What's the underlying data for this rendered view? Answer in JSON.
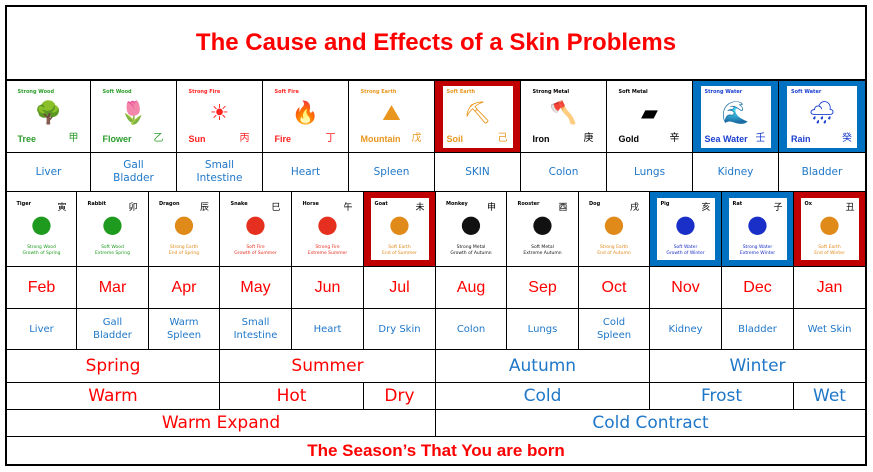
{
  "title": "The Cause and Effects of a Skin Problems",
  "colors": {
    "red": "#ff0000",
    "dark_red": "#c00000",
    "blue": "#0070c0",
    "organ_blue": "#1f77c8"
  },
  "elements": [
    {
      "strength": "Strong Wood",
      "name": "Tree",
      "char": "甲",
      "icon": "tree-icon",
      "glyph": "🌳",
      "color": "#2a9d2a",
      "bg": "white",
      "organ": "Liver"
    },
    {
      "strength": "Soft Wood",
      "name": "Flower",
      "char": "乙",
      "icon": "flower-icon",
      "glyph": "🌷",
      "color": "#2a9d2a",
      "bg": "white",
      "organ": "Gall Bladder"
    },
    {
      "strength": "Strong Fire",
      "name": "Sun",
      "char": "丙",
      "icon": "sun-icon",
      "glyph": "☀",
      "color": "#ff2020",
      "bg": "white",
      "organ": "Small Intestine"
    },
    {
      "strength": "Soft Fire",
      "name": "Fire",
      "char": "丁",
      "icon": "fire-icon",
      "glyph": "🔥",
      "color": "#ff2020",
      "bg": "white",
      "organ": "Heart"
    },
    {
      "strength": "Strong Earth",
      "name": "Mountain",
      "char": "戊",
      "icon": "mountain-icon",
      "glyph": "⛰",
      "color": "#e8961e",
      "bg": "white",
      "organ": "Spleen"
    },
    {
      "strength": "Soft Earth",
      "name": "Soil",
      "char": "己",
      "icon": "soil-icon",
      "glyph": "⛏",
      "color": "#e8961e",
      "bg": "red",
      "organ": "SKIN"
    },
    {
      "strength": "Strong Metal",
      "name": "Iron",
      "char": "庚",
      "icon": "axe-icon",
      "glyph": "🪓",
      "color": "#000000",
      "bg": "white",
      "organ": "Colon"
    },
    {
      "strength": "Soft Metal",
      "name": "Gold",
      "char": "辛",
      "icon": "gold-bar-icon",
      "glyph": "▰",
      "color": "#000000",
      "bg": "white",
      "organ": "Lungs"
    },
    {
      "strength": "Strong Water",
      "name": "Sea Water",
      "char": "壬",
      "icon": "wave-icon",
      "glyph": "🌊",
      "color": "#1a3fd0",
      "bg": "blue",
      "organ": "Kidney"
    },
    {
      "strength": "Soft Water",
      "name": "Rain",
      "char": "癸",
      "icon": "rain-cloud-icon",
      "glyph": "🌧",
      "color": "#1a3fd0",
      "bg": "blue",
      "organ": "Bladder"
    }
  ],
  "zodiac": [
    {
      "animal": "Tiger",
      "char": "寅",
      "desc1": "Strong Wood",
      "desc2": "Growth of Spring",
      "color": "#1e9a1e",
      "bg": "white",
      "month": "Feb",
      "organ": "Liver",
      "icon": "tiger-icon"
    },
    {
      "animal": "Rabbit",
      "char": "卯",
      "desc1": "Soft Wood",
      "desc2": "Extreme Spring",
      "color": "#1e9a1e",
      "bg": "white",
      "month": "Mar",
      "organ": "Gall Bladder",
      "icon": "rabbit-icon"
    },
    {
      "animal": "Dragon",
      "char": "辰",
      "desc1": "Strong Earth",
      "desc2": "End of Spring",
      "color": "#e08a1a",
      "bg": "white",
      "month": "Apr",
      "organ": "Warm Spleen",
      "icon": "dragon-icon"
    },
    {
      "animal": "Snake",
      "char": "巳",
      "desc1": "Soft Fire",
      "desc2": "Growth of Summer",
      "color": "#e53020",
      "bg": "white",
      "month": "May",
      "organ": "Small Intestine",
      "icon": "snake-icon"
    },
    {
      "animal": "Horse",
      "char": "午",
      "desc1": "Strong Fire",
      "desc2": "Extreme Summer",
      "color": "#e53020",
      "bg": "white",
      "month": "Jun",
      "organ": "Heart",
      "icon": "horse-icon"
    },
    {
      "animal": "Goat",
      "char": "未",
      "desc1": "Soft Earth",
      "desc2": "End of Summer",
      "color": "#e08a1a",
      "bg": "red",
      "month": "Jul",
      "organ": "Dry Skin",
      "icon": "goat-icon"
    },
    {
      "animal": "Monkey",
      "char": "申",
      "desc1": "Strong Metal",
      "desc2": "Growth of Autumn",
      "color": "#111111",
      "bg": "white",
      "month": "Aug",
      "organ": "Colon",
      "icon": "monkey-icon"
    },
    {
      "animal": "Rooster",
      "char": "酉",
      "desc1": "Soft Metal",
      "desc2": "Extreme Autumn",
      "color": "#111111",
      "bg": "white",
      "month": "Sep",
      "organ": "Lungs",
      "icon": "rooster-icon"
    },
    {
      "animal": "Dog",
      "char": "戌",
      "desc1": "Strong Earth",
      "desc2": "End of Autumn",
      "color": "#e08a1a",
      "bg": "white",
      "month": "Oct",
      "organ": "Cold Spleen",
      "icon": "dog-icon"
    },
    {
      "animal": "Pig",
      "char": "亥",
      "desc1": "Soft Water",
      "desc2": "Growth of Winter",
      "color": "#1a2fc8",
      "bg": "blue",
      "month": "Nov",
      "organ": "Kidney",
      "icon": "pig-icon"
    },
    {
      "animal": "Rat",
      "char": "子",
      "desc1": "Strong Water",
      "desc2": "Extreme Winter",
      "color": "#1a2fc8",
      "bg": "blue",
      "month": "Dec",
      "organ": "Bladder",
      "icon": "rat-icon"
    },
    {
      "animal": "Ox",
      "char": "丑",
      "desc1": "Soft Earth",
      "desc2": "End of Winter",
      "color": "#e08a1a",
      "bg": "red",
      "month": "Jan",
      "organ": "Wet Skin",
      "icon": "ox-icon"
    }
  ],
  "seasons": [
    {
      "label": "Spring",
      "span": 3,
      "tone": "warm"
    },
    {
      "label": "Summer",
      "span": 3,
      "tone": "warm"
    },
    {
      "label": "Autumn",
      "span": 3,
      "tone": "cold"
    },
    {
      "label": "Winter",
      "span": 3,
      "tone": "cold"
    }
  ],
  "temperatures": [
    {
      "label": "Warm",
      "span": 3,
      "tone": "warm"
    },
    {
      "label": "Hot",
      "span": 2,
      "tone": "warm"
    },
    {
      "label": "Dry",
      "span": 1,
      "tone": "warm"
    },
    {
      "label": "Cold",
      "span": 3,
      "tone": "cold"
    },
    {
      "label": "Frost",
      "span": 2,
      "tone": "cold"
    },
    {
      "label": "Wet",
      "span": 1,
      "tone": "cold"
    }
  ],
  "expansion": [
    {
      "label": "Warm Expand",
      "span": 6,
      "tone": "warm"
    },
    {
      "label": "Cold Contract",
      "span": 6,
      "tone": "cold"
    }
  ],
  "footer": "The Season’s That You are born"
}
